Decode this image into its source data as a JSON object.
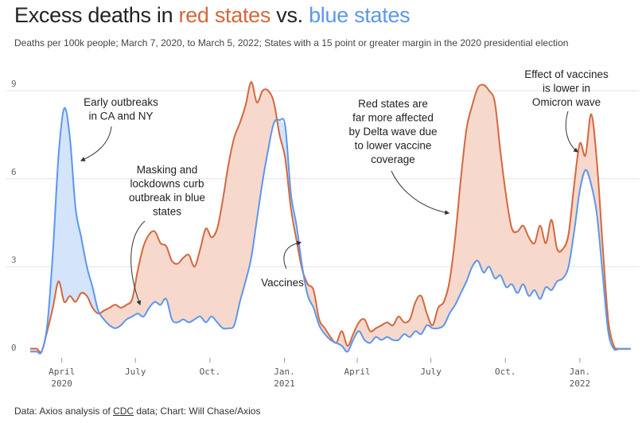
{
  "title": {
    "prefix": "Excess deaths in ",
    "red_part": "red states",
    "middle": " vs. ",
    "blue_part": "blue states"
  },
  "subtitle": "Deaths per 100k people; March 7, 2020, to March 5, 2022; States with a 15 point or greater margin in the 2020 presidential election",
  "source": {
    "prefix": "Data: Axios analysis of ",
    "link": "CDC",
    "suffix": " data; Chart: Will Chase/Axios"
  },
  "colors": {
    "red": "#d4683d",
    "blue": "#5c97ec",
    "red_fill": "#f6d8cc",
    "blue_fill": "#d3e4fb"
  },
  "chart_data": {
    "type": "area",
    "ylim": [
      0,
      9.6
    ],
    "yticks": [
      0,
      3,
      6,
      9
    ],
    "xlim": [
      "2020-02-22",
      "2022-03-07"
    ],
    "x_ticks": [
      {
        "date": "2020-04-01",
        "label": "April",
        "year": "2020"
      },
      {
        "date": "2020-07-01",
        "label": "July",
        "year": ""
      },
      {
        "date": "2020-10-01",
        "label": "Oct.",
        "year": ""
      },
      {
        "date": "2021-01-01",
        "label": "Jan.",
        "year": "2021"
      },
      {
        "date": "2021-04-01",
        "label": "April",
        "year": ""
      },
      {
        "date": "2021-07-01",
        "label": "July",
        "year": ""
      },
      {
        "date": "2021-10-01",
        "label": "Oct.",
        "year": ""
      },
      {
        "date": "2022-01-01",
        "label": "Jan.",
        "year": "2022"
      }
    ],
    "series": [
      {
        "name": "red states",
        "color": "#d4683d",
        "points": [
          [
            "2020-02-22",
            0.2
          ],
          [
            "2020-03-01",
            0.2
          ],
          [
            "2020-03-07",
            0.1
          ],
          [
            "2020-03-14",
            0.8
          ],
          [
            "2020-03-21",
            1.6
          ],
          [
            "2020-03-28",
            2.5
          ],
          [
            "2020-04-04",
            1.8
          ],
          [
            "2020-04-11",
            2.0
          ],
          [
            "2020-04-18",
            1.8
          ],
          [
            "2020-04-25",
            2.1
          ],
          [
            "2020-05-02",
            2.0
          ],
          [
            "2020-05-09",
            1.6
          ],
          [
            "2020-05-16",
            1.4
          ],
          [
            "2020-05-23",
            1.5
          ],
          [
            "2020-05-30",
            1.6
          ],
          [
            "2020-06-06",
            1.7
          ],
          [
            "2020-06-13",
            1.6
          ],
          [
            "2020-06-20",
            1.7
          ],
          [
            "2020-06-27",
            1.9
          ],
          [
            "2020-07-04",
            2.9
          ],
          [
            "2020-07-11",
            3.7
          ],
          [
            "2020-07-18",
            4.1
          ],
          [
            "2020-07-25",
            4.2
          ],
          [
            "2020-08-01",
            3.8
          ],
          [
            "2020-08-08",
            3.7
          ],
          [
            "2020-08-15",
            3.2
          ],
          [
            "2020-08-22",
            3.1
          ],
          [
            "2020-08-29",
            3.3
          ],
          [
            "2020-09-05",
            3.4
          ],
          [
            "2020-09-12",
            3.0
          ],
          [
            "2020-09-19",
            3.6
          ],
          [
            "2020-09-26",
            4.3
          ],
          [
            "2020-10-03",
            4.0
          ],
          [
            "2020-10-10",
            4.3
          ],
          [
            "2020-10-17",
            5.3
          ],
          [
            "2020-10-24",
            6.5
          ],
          [
            "2020-10-31",
            7.4
          ],
          [
            "2020-11-07",
            7.9
          ],
          [
            "2020-11-14",
            8.5
          ],
          [
            "2020-11-21",
            9.3
          ],
          [
            "2020-11-28",
            8.6
          ],
          [
            "2020-12-05",
            9.0
          ],
          [
            "2020-12-12",
            9.0
          ],
          [
            "2020-12-19",
            8.6
          ],
          [
            "2020-12-26",
            7.5
          ],
          [
            "2021-01-02",
            6.7
          ],
          [
            "2021-01-09",
            5.0
          ],
          [
            "2021-01-16",
            3.9
          ],
          [
            "2021-01-23",
            2.9
          ],
          [
            "2021-01-30",
            2.4
          ],
          [
            "2021-02-06",
            2.2
          ],
          [
            "2021-02-13",
            1.2
          ],
          [
            "2021-02-20",
            0.9
          ],
          [
            "2021-02-27",
            0.6
          ],
          [
            "2021-03-06",
            0.4
          ],
          [
            "2021-03-13",
            0.8
          ],
          [
            "2021-03-20",
            0.3
          ],
          [
            "2021-03-27",
            0.7
          ],
          [
            "2021-04-03",
            1.1
          ],
          [
            "2021-04-10",
            1.2
          ],
          [
            "2021-04-17",
            0.8
          ],
          [
            "2021-04-24",
            0.9
          ],
          [
            "2021-05-01",
            1.0
          ],
          [
            "2021-05-08",
            1.1
          ],
          [
            "2021-05-15",
            1.0
          ],
          [
            "2021-05-22",
            1.3
          ],
          [
            "2021-05-29",
            1.1
          ],
          [
            "2021-06-05",
            1.2
          ],
          [
            "2021-06-12",
            1.8
          ],
          [
            "2021-06-19",
            2.0
          ],
          [
            "2021-06-26",
            1.4
          ],
          [
            "2021-07-03",
            1.0
          ],
          [
            "2021-07-10",
            1.6
          ],
          [
            "2021-07-17",
            1.8
          ],
          [
            "2021-07-24",
            2.5
          ],
          [
            "2021-07-31",
            4.0
          ],
          [
            "2021-08-07",
            6.0
          ],
          [
            "2021-08-14",
            7.7
          ],
          [
            "2021-08-21",
            8.5
          ],
          [
            "2021-08-28",
            9.1
          ],
          [
            "2021-09-04",
            9.2
          ],
          [
            "2021-09-11",
            9.0
          ],
          [
            "2021-09-18",
            8.6
          ],
          [
            "2021-09-25",
            6.9
          ],
          [
            "2021-10-02",
            5.4
          ],
          [
            "2021-10-09",
            4.3
          ],
          [
            "2021-10-16",
            4.2
          ],
          [
            "2021-10-23",
            4.4
          ],
          [
            "2021-10-30",
            4.0
          ],
          [
            "2021-11-06",
            3.8
          ],
          [
            "2021-11-13",
            4.4
          ],
          [
            "2021-11-20",
            3.8
          ],
          [
            "2021-11-27",
            4.6
          ],
          [
            "2021-12-04",
            3.6
          ],
          [
            "2021-12-11",
            3.6
          ],
          [
            "2021-12-18",
            4.1
          ],
          [
            "2021-12-25",
            5.8
          ],
          [
            "2022-01-01",
            7.2
          ],
          [
            "2022-01-08",
            6.8
          ],
          [
            "2022-01-15",
            8.2
          ],
          [
            "2022-01-22",
            6.6
          ],
          [
            "2022-01-29",
            3.8
          ],
          [
            "2022-02-05",
            1.2
          ],
          [
            "2022-02-12",
            0.3
          ],
          [
            "2022-02-19",
            0.2
          ],
          [
            "2022-03-05",
            0.2
          ]
        ]
      },
      {
        "name": "blue states",
        "color": "#5c97ec",
        "points": [
          [
            "2020-02-22",
            0.1
          ],
          [
            "2020-03-01",
            0.1
          ],
          [
            "2020-03-07",
            0.1
          ],
          [
            "2020-03-14",
            1.0
          ],
          [
            "2020-03-21",
            3.5
          ],
          [
            "2020-03-28",
            6.8
          ],
          [
            "2020-04-04",
            8.4
          ],
          [
            "2020-04-11",
            7.4
          ],
          [
            "2020-04-18",
            5.0
          ],
          [
            "2020-04-25",
            4.0
          ],
          [
            "2020-05-02",
            3.0
          ],
          [
            "2020-05-09",
            2.3
          ],
          [
            "2020-05-16",
            1.5
          ],
          [
            "2020-05-23",
            1.2
          ],
          [
            "2020-05-30",
            1.0
          ],
          [
            "2020-06-06",
            0.9
          ],
          [
            "2020-06-13",
            1.0
          ],
          [
            "2020-06-20",
            1.2
          ],
          [
            "2020-06-27",
            1.3
          ],
          [
            "2020-07-04",
            1.4
          ],
          [
            "2020-07-11",
            1.3
          ],
          [
            "2020-07-18",
            1.6
          ],
          [
            "2020-07-25",
            1.8
          ],
          [
            "2020-08-01",
            1.7
          ],
          [
            "2020-08-08",
            1.9
          ],
          [
            "2020-08-15",
            1.2
          ],
          [
            "2020-08-22",
            1.1
          ],
          [
            "2020-08-29",
            1.2
          ],
          [
            "2020-09-05",
            1.1
          ],
          [
            "2020-09-12",
            1.2
          ],
          [
            "2020-09-19",
            1.3
          ],
          [
            "2020-09-26",
            1.1
          ],
          [
            "2020-10-03",
            1.3
          ],
          [
            "2020-10-10",
            1.1
          ],
          [
            "2020-10-17",
            0.9
          ],
          [
            "2020-10-24",
            0.9
          ],
          [
            "2020-10-31",
            1.0
          ],
          [
            "2020-11-07",
            1.8
          ],
          [
            "2020-11-14",
            2.5
          ],
          [
            "2020-11-21",
            3.3
          ],
          [
            "2020-11-28",
            4.6
          ],
          [
            "2020-12-05",
            5.9
          ],
          [
            "2020-12-12",
            7.0
          ],
          [
            "2020-12-19",
            7.9
          ],
          [
            "2020-12-26",
            8.0
          ],
          [
            "2021-01-02",
            7.8
          ],
          [
            "2021-01-09",
            5.5
          ],
          [
            "2021-01-16",
            4.4
          ],
          [
            "2021-01-23",
            3.0
          ],
          [
            "2021-01-30",
            2.0
          ],
          [
            "2021-02-06",
            1.6
          ],
          [
            "2021-02-13",
            1.0
          ],
          [
            "2021-02-20",
            0.7
          ],
          [
            "2021-02-27",
            0.5
          ],
          [
            "2021-03-06",
            0.4
          ],
          [
            "2021-03-13",
            0.3
          ],
          [
            "2021-03-20",
            0.1
          ],
          [
            "2021-03-27",
            0.5
          ],
          [
            "2021-04-03",
            0.8
          ],
          [
            "2021-04-10",
            0.5
          ],
          [
            "2021-04-17",
            0.4
          ],
          [
            "2021-04-24",
            0.6
          ],
          [
            "2021-05-01",
            0.5
          ],
          [
            "2021-05-08",
            0.6
          ],
          [
            "2021-05-15",
            0.5
          ],
          [
            "2021-05-22",
            0.5
          ],
          [
            "2021-05-29",
            0.7
          ],
          [
            "2021-06-05",
            0.6
          ],
          [
            "2021-06-12",
            0.8
          ],
          [
            "2021-06-19",
            0.7
          ],
          [
            "2021-06-26",
            1.0
          ],
          [
            "2021-07-03",
            0.9
          ],
          [
            "2021-07-10",
            0.9
          ],
          [
            "2021-07-17",
            1.0
          ],
          [
            "2021-07-24",
            1.4
          ],
          [
            "2021-07-31",
            1.7
          ],
          [
            "2021-08-07",
            2.1
          ],
          [
            "2021-08-14",
            2.5
          ],
          [
            "2021-08-21",
            3.0
          ],
          [
            "2021-08-28",
            3.2
          ],
          [
            "2021-09-04",
            2.8
          ],
          [
            "2021-09-11",
            3.0
          ],
          [
            "2021-09-18",
            2.6
          ],
          [
            "2021-09-25",
            2.7
          ],
          [
            "2021-10-02",
            2.3
          ],
          [
            "2021-10-09",
            2.4
          ],
          [
            "2021-10-16",
            2.1
          ],
          [
            "2021-10-23",
            2.4
          ],
          [
            "2021-10-30",
            2.0
          ],
          [
            "2021-11-06",
            2.2
          ],
          [
            "2021-11-13",
            1.9
          ],
          [
            "2021-11-20",
            2.3
          ],
          [
            "2021-11-27",
            2.2
          ],
          [
            "2021-12-04",
            2.5
          ],
          [
            "2021-12-11",
            2.6
          ],
          [
            "2021-12-18",
            3.0
          ],
          [
            "2021-12-25",
            4.2
          ],
          [
            "2022-01-01",
            5.6
          ],
          [
            "2022-01-08",
            6.3
          ],
          [
            "2022-01-15",
            5.8
          ],
          [
            "2022-01-22",
            4.8
          ],
          [
            "2022-01-29",
            2.8
          ],
          [
            "2022-02-05",
            0.8
          ],
          [
            "2022-02-12",
            0.2
          ],
          [
            "2022-02-19",
            0.2
          ],
          [
            "2022-03-05",
            0.2
          ]
        ]
      }
    ],
    "annotations": [
      {
        "text": [
          "Early outbreaks",
          "in CA and NY"
        ],
        "align": "middle"
      },
      {
        "text": [
          "Masking and",
          "lockdowns curb",
          "outbreak in blue",
          "states"
        ],
        "align": "middle"
      },
      {
        "text": [
          "Vaccines"
        ],
        "align": "middle"
      },
      {
        "text": [
          "Red states are",
          "far more affected",
          "by Delta wave due",
          "to lower vaccine",
          "coverage"
        ],
        "align": "middle"
      },
      {
        "text": [
          "Effect of vaccines",
          "is lower in",
          "Omicron wave"
        ],
        "align": "middle"
      }
    ]
  }
}
